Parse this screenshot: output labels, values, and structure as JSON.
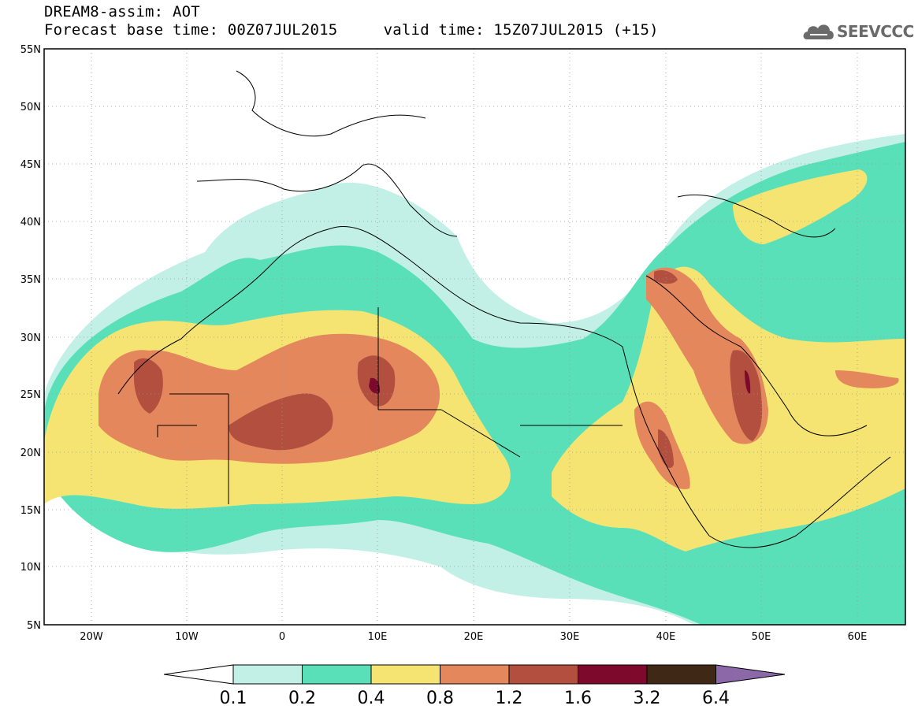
{
  "header": {
    "title": "DREAM8-assim: AOT",
    "subtitle": "Forecast base time: 00Z07JUL2015     valid time: 15Z07JUL2015 (+15)",
    "logo_text": "SEEVCCC",
    "logo_icon": "cloud-icon"
  },
  "map": {
    "lat_labels": [
      "55N",
      "50N",
      "45N",
      "40N",
      "35N",
      "30N",
      "25N",
      "20N",
      "15N",
      "10N",
      "5N"
    ],
    "lon_labels": [
      "20W",
      "10W",
      "0",
      "10E",
      "20E",
      "30E",
      "40E",
      "50E",
      "60E"
    ],
    "extent": {
      "lon_min": -25,
      "lon_max": 65,
      "lat_min": 5,
      "lat_max": 55
    },
    "grid": "dotted"
  },
  "colorbar": {
    "labels": [
      "0.1",
      "0.2",
      "0.4",
      "0.8",
      "1.2",
      "1.6",
      "3.2",
      "6.4"
    ],
    "colors": [
      "#ffffff",
      "#c2f0e6",
      "#5ae0b8",
      "#f5e471",
      "#e5875c",
      "#b24f3f",
      "#7d0a2c",
      "#3f2816",
      "#8c68a8"
    ]
  }
}
